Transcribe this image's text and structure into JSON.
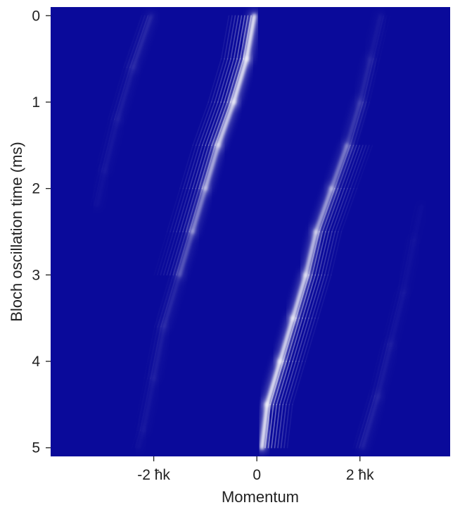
{
  "chart_data": {
    "type": "heatmap",
    "xlabel": "Momentum",
    "ylabel": "Bloch oscillation time (ms)",
    "xlim": [
      -4.0,
      3.75
    ],
    "ylim": [
      5.1,
      -0.1
    ],
    "x_ticks": [
      {
        "value": -2,
        "label": "-2 ħk"
      },
      {
        "value": 0,
        "label": "0"
      },
      {
        "value": 2,
        "label": "2 ħk"
      }
    ],
    "y_ticks": [
      {
        "value": 0,
        "label": "0"
      },
      {
        "value": 1,
        "label": "1"
      },
      {
        "value": 2,
        "label": "2"
      },
      {
        "value": 3,
        "label": "3"
      },
      {
        "value": 4,
        "label": "4"
      },
      {
        "value": 5,
        "label": "5"
      }
    ],
    "colormap": {
      "low": "#0a0a9a",
      "high": "#ffffff"
    },
    "series": [
      {
        "points": [
          [
            -0.05,
            0.0
          ],
          [
            -0.2,
            0.5
          ],
          [
            -0.45,
            1.0
          ],
          [
            -0.75,
            1.5
          ],
          [
            -1.0,
            2.0
          ],
          [
            -1.25,
            2.5
          ],
          [
            -1.5,
            3.0
          ]
        ],
        "intensity": [
          1.0,
          1.0,
          0.95,
          0.8,
          0.6,
          0.4,
          0.2
        ]
      },
      {
        "points": [
          [
            0.1,
            5.0
          ],
          [
            0.2,
            4.5
          ],
          [
            0.45,
            4.0
          ],
          [
            0.7,
            3.5
          ],
          [
            0.95,
            3.0
          ],
          [
            1.15,
            2.5
          ],
          [
            1.45,
            2.0
          ],
          [
            1.75,
            1.5
          ],
          [
            2.0,
            1.0
          ],
          [
            2.2,
            0.5
          ],
          [
            2.4,
            0.0
          ]
        ],
        "intensity": [
          1.0,
          1.0,
          0.95,
          0.9,
          0.85,
          0.7,
          0.55,
          0.35,
          0.2,
          0.1,
          0.05
        ]
      },
      {
        "points": [
          [
            -2.05,
            0.0
          ],
          [
            -2.4,
            0.6
          ],
          [
            -2.7,
            1.2
          ],
          [
            -2.95,
            1.8
          ],
          [
            -3.1,
            2.2
          ]
        ],
        "intensity": [
          0.2,
          0.12,
          0.08,
          0.05,
          0.03
        ]
      },
      {
        "points": [
          [
            -1.5,
            3.0
          ],
          [
            -1.8,
            3.6
          ],
          [
            -2.0,
            4.2
          ],
          [
            -2.2,
            4.8
          ],
          [
            -2.3,
            5.0
          ]
        ],
        "intensity": [
          0.2,
          0.12,
          0.08,
          0.05,
          0.03
        ]
      },
      {
        "points": [
          [
            2.05,
            5.0
          ],
          [
            2.35,
            4.4
          ],
          [
            2.6,
            3.8
          ],
          [
            2.85,
            3.2
          ],
          [
            3.05,
            2.6
          ],
          [
            3.2,
            2.2
          ]
        ],
        "intensity": [
          0.15,
          0.1,
          0.07,
          0.05,
          0.03,
          0.02
        ]
      }
    ]
  }
}
